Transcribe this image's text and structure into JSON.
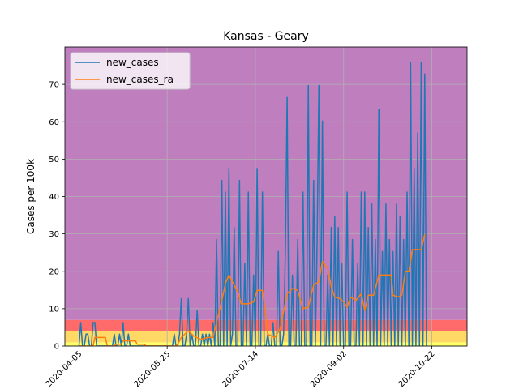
{
  "chart_data": {
    "type": "line",
    "title": "Kansas - Geary",
    "xlabel": "",
    "ylabel": "Cases per 100k",
    "x_range": [
      "2020-03-28",
      "2020-11-11"
    ],
    "ylim": [
      0,
      80
    ],
    "yticks": [
      0,
      10,
      20,
      30,
      40,
      50,
      60,
      70
    ],
    "xticks": [
      "2020-04-05",
      "2020-05-25",
      "2020-07-14",
      "2020-09-02",
      "2020-10-22"
    ],
    "grid": true,
    "legend_position": "upper-left",
    "background_bands": [
      {
        "from": 0,
        "to": 1,
        "color": "#ffff66"
      },
      {
        "from": 1,
        "to": 4,
        "color": "#ffd966"
      },
      {
        "from": 4,
        "to": 7,
        "color": "#ff6b6b"
      },
      {
        "from": 7,
        "to": 80,
        "color": "#bf7fbf"
      }
    ],
    "series": [
      {
        "name": "new_cases",
        "color": "#1f77b4",
        "points": [
          [
            "2020-04-05",
            0
          ],
          [
            "2020-04-06",
            6.3
          ],
          [
            "2020-04-07",
            0
          ],
          [
            "2020-04-08",
            0
          ],
          [
            "2020-04-09",
            3.2
          ],
          [
            "2020-04-10",
            3.2
          ],
          [
            "2020-04-11",
            0
          ],
          [
            "2020-04-12",
            0
          ],
          [
            "2020-04-13",
            6.3
          ],
          [
            "2020-04-14",
            6.3
          ],
          [
            "2020-04-15",
            0
          ],
          [
            "2020-04-16",
            0
          ],
          [
            "2020-04-17",
            0
          ],
          [
            "2020-04-24",
            0
          ],
          [
            "2020-04-25",
            3.2
          ],
          [
            "2020-04-26",
            0
          ],
          [
            "2020-04-27",
            0
          ],
          [
            "2020-04-28",
            3.2
          ],
          [
            "2020-04-29",
            0
          ],
          [
            "2020-04-30",
            6.3
          ],
          [
            "2020-05-01",
            0
          ],
          [
            "2020-05-02",
            0
          ],
          [
            "2020-05-03",
            3.2
          ],
          [
            "2020-05-04",
            0
          ],
          [
            "2020-05-28",
            0
          ],
          [
            "2020-05-29",
            3.2
          ],
          [
            "2020-05-30",
            0
          ],
          [
            "2020-05-31",
            0
          ],
          [
            "2020-06-01",
            3.2
          ],
          [
            "2020-06-02",
            12.7
          ],
          [
            "2020-06-03",
            0
          ],
          [
            "2020-06-04",
            0
          ],
          [
            "2020-06-05",
            3.2
          ],
          [
            "2020-06-06",
            12.7
          ],
          [
            "2020-06-07",
            0
          ],
          [
            "2020-06-08",
            3.2
          ],
          [
            "2020-06-09",
            0
          ],
          [
            "2020-06-10",
            0
          ],
          [
            "2020-06-11",
            9.5
          ],
          [
            "2020-06-12",
            0
          ],
          [
            "2020-06-13",
            0
          ],
          [
            "2020-06-14",
            3.2
          ],
          [
            "2020-06-15",
            0
          ],
          [
            "2020-06-16",
            3.2
          ],
          [
            "2020-06-17",
            0
          ],
          [
            "2020-06-18",
            3.2
          ],
          [
            "2020-06-19",
            0
          ],
          [
            "2020-06-20",
            6.3
          ],
          [
            "2020-06-21",
            0
          ],
          [
            "2020-06-22",
            28.5
          ],
          [
            "2020-06-23",
            0
          ],
          [
            "2020-06-24",
            0
          ],
          [
            "2020-06-25",
            44.3
          ],
          [
            "2020-06-26",
            0
          ],
          [
            "2020-06-27",
            41.2
          ],
          [
            "2020-06-28",
            0
          ],
          [
            "2020-06-29",
            47.5
          ],
          [
            "2020-06-30",
            0
          ],
          [
            "2020-07-01",
            3.2
          ],
          [
            "2020-07-02",
            31.7
          ],
          [
            "2020-07-03",
            0
          ],
          [
            "2020-07-04",
            0
          ],
          [
            "2020-07-05",
            44.3
          ],
          [
            "2020-07-06",
            0
          ],
          [
            "2020-07-07",
            0
          ],
          [
            "2020-07-08",
            22.2
          ],
          [
            "2020-07-09",
            0
          ],
          [
            "2020-07-10",
            41.2
          ],
          [
            "2020-07-11",
            0
          ],
          [
            "2020-07-12",
            0
          ],
          [
            "2020-07-13",
            19.0
          ],
          [
            "2020-07-14",
            0
          ],
          [
            "2020-07-15",
            47.5
          ],
          [
            "2020-07-16",
            0
          ],
          [
            "2020-07-17",
            0
          ],
          [
            "2020-07-18",
            41.2
          ],
          [
            "2020-07-19",
            0
          ],
          [
            "2020-07-20",
            0
          ],
          [
            "2020-07-21",
            3.2
          ],
          [
            "2020-07-22",
            0
          ],
          [
            "2020-07-23",
            0
          ],
          [
            "2020-07-24",
            6.3
          ],
          [
            "2020-07-25",
            0
          ],
          [
            "2020-07-26",
            0
          ],
          [
            "2020-07-27",
            25.3
          ],
          [
            "2020-07-28",
            0
          ],
          [
            "2020-07-29",
            0
          ],
          [
            "2020-07-30",
            3.2
          ],
          [
            "2020-07-31",
            25.3
          ],
          [
            "2020-08-01",
            66.5
          ],
          [
            "2020-08-02",
            0
          ],
          [
            "2020-08-03",
            0
          ],
          [
            "2020-08-04",
            19.0
          ],
          [
            "2020-08-05",
            0
          ],
          [
            "2020-08-06",
            0
          ],
          [
            "2020-08-07",
            28.5
          ],
          [
            "2020-08-08",
            0
          ],
          [
            "2020-08-09",
            0
          ],
          [
            "2020-08-10",
            41.2
          ],
          [
            "2020-08-11",
            0
          ],
          [
            "2020-08-12",
            0
          ],
          [
            "2020-08-13",
            69.7
          ],
          [
            "2020-08-14",
            0
          ],
          [
            "2020-08-15",
            0
          ],
          [
            "2020-08-16",
            44.3
          ],
          [
            "2020-08-17",
            0
          ],
          [
            "2020-08-18",
            28.5
          ],
          [
            "2020-08-19",
            69.7
          ],
          [
            "2020-08-20",
            0
          ],
          [
            "2020-08-21",
            60.2
          ],
          [
            "2020-08-22",
            0
          ],
          [
            "2020-08-23",
            0
          ],
          [
            "2020-08-24",
            19.0
          ],
          [
            "2020-08-25",
            0
          ],
          [
            "2020-08-26",
            31.7
          ],
          [
            "2020-08-27",
            0
          ],
          [
            "2020-08-28",
            34.8
          ],
          [
            "2020-08-29",
            0
          ],
          [
            "2020-08-30",
            31.7
          ],
          [
            "2020-08-31",
            0
          ],
          [
            "2020-09-01",
            22.2
          ],
          [
            "2020-09-02",
            0
          ],
          [
            "2020-09-03",
            0
          ],
          [
            "2020-09-04",
            41.2
          ],
          [
            "2020-09-05",
            0
          ],
          [
            "2020-09-06",
            0
          ],
          [
            "2020-09-07",
            28.5
          ],
          [
            "2020-09-08",
            0
          ],
          [
            "2020-09-09",
            0
          ],
          [
            "2020-09-10",
            22.2
          ],
          [
            "2020-09-11",
            0
          ],
          [
            "2020-09-12",
            41.2
          ],
          [
            "2020-09-13",
            0
          ],
          [
            "2020-09-14",
            41.2
          ],
          [
            "2020-09-15",
            0
          ],
          [
            "2020-09-16",
            31.7
          ],
          [
            "2020-09-17",
            0
          ],
          [
            "2020-09-18",
            38.0
          ],
          [
            "2020-09-19",
            0
          ],
          [
            "2020-09-20",
            28.5
          ],
          [
            "2020-09-21",
            0
          ],
          [
            "2020-09-22",
            63.3
          ],
          [
            "2020-09-23",
            0
          ],
          [
            "2020-09-24",
            25.3
          ],
          [
            "2020-09-25",
            0
          ],
          [
            "2020-09-26",
            38.0
          ],
          [
            "2020-09-27",
            0
          ],
          [
            "2020-09-28",
            28.5
          ],
          [
            "2020-09-29",
            0
          ],
          [
            "2020-09-30",
            25.3
          ],
          [
            "2020-10-01",
            0
          ],
          [
            "2020-10-02",
            38.0
          ],
          [
            "2020-10-03",
            0
          ],
          [
            "2020-10-04",
            34.8
          ],
          [
            "2020-10-05",
            0
          ],
          [
            "2020-10-06",
            28.5
          ],
          [
            "2020-10-07",
            0
          ],
          [
            "2020-10-08",
            41.2
          ],
          [
            "2020-10-09",
            0
          ],
          [
            "2020-10-10",
            75.9
          ],
          [
            "2020-10-11",
            0
          ],
          [
            "2020-10-12",
            47.5
          ],
          [
            "2020-10-13",
            0
          ],
          [
            "2020-10-14",
            57.0
          ],
          [
            "2020-10-15",
            0
          ],
          [
            "2020-10-16",
            75.9
          ],
          [
            "2020-10-17",
            0
          ],
          [
            "2020-10-18",
            72.8
          ],
          [
            "2020-10-19",
            0
          ]
        ]
      },
      {
        "name": "new_cases_ra",
        "color": "#ff7f0e",
        "points": [
          [
            "2020-04-05",
            0
          ],
          [
            "2020-04-13",
            0
          ],
          [
            "2020-04-14",
            2.3
          ],
          [
            "2020-04-20",
            2.3
          ],
          [
            "2020-04-21",
            0
          ],
          [
            "2020-04-25",
            0
          ],
          [
            "2020-04-26",
            0.5
          ],
          [
            "2020-04-29",
            0.5
          ],
          [
            "2020-04-30",
            1.4
          ],
          [
            "2020-05-07",
            1.4
          ],
          [
            "2020-05-08",
            0.5
          ],
          [
            "2020-05-12",
            0.5
          ],
          [
            "2020-05-13",
            0
          ],
          [
            "2020-05-30",
            0
          ],
          [
            "2020-05-31",
            0.5
          ],
          [
            "2020-06-02",
            2.3
          ],
          [
            "2020-06-06",
            4.1
          ],
          [
            "2020-06-09",
            2.7
          ],
          [
            "2020-06-13",
            1.8
          ],
          [
            "2020-06-17",
            2.3
          ],
          [
            "2020-06-20",
            2.3
          ],
          [
            "2020-06-22",
            6.3
          ],
          [
            "2020-06-25",
            12.2
          ],
          [
            "2020-06-27",
            16.7
          ],
          [
            "2020-06-29",
            19.0
          ],
          [
            "2020-07-02",
            16.3
          ],
          [
            "2020-07-04",
            14.5
          ],
          [
            "2020-07-06",
            11.3
          ],
          [
            "2020-07-10",
            11.3
          ],
          [
            "2020-07-13",
            11.8
          ],
          [
            "2020-07-15",
            14.9
          ],
          [
            "2020-07-18",
            14.9
          ],
          [
            "2020-07-19",
            11.8
          ],
          [
            "2020-07-21",
            3.2
          ],
          [
            "2020-07-25",
            2.3
          ],
          [
            "2020-07-28",
            4.5
          ],
          [
            "2020-08-01",
            14.0
          ],
          [
            "2020-08-04",
            15.4
          ],
          [
            "2020-08-07",
            14.9
          ],
          [
            "2020-08-10",
            10.0
          ],
          [
            "2020-08-13",
            10.4
          ],
          [
            "2020-08-16",
            16.3
          ],
          [
            "2020-08-19",
            17.2
          ],
          [
            "2020-08-21",
            22.6
          ],
          [
            "2020-08-24",
            20.8
          ],
          [
            "2020-08-26",
            15.8
          ],
          [
            "2020-08-28",
            13.1
          ],
          [
            "2020-08-31",
            12.7
          ],
          [
            "2020-09-02",
            11.8
          ],
          [
            "2020-09-04",
            10.4
          ],
          [
            "2020-09-06",
            13.1
          ],
          [
            "2020-09-09",
            12.2
          ],
          [
            "2020-09-12",
            14.0
          ],
          [
            "2020-09-14",
            9.5
          ],
          [
            "2020-09-16",
            13.6
          ],
          [
            "2020-09-19",
            13.6
          ],
          [
            "2020-09-22",
            19.0
          ],
          [
            "2020-09-26",
            19.0
          ],
          [
            "2020-09-29",
            19.0
          ],
          [
            "2020-09-30",
            13.6
          ],
          [
            "2020-10-03",
            13.1
          ],
          [
            "2020-10-05",
            13.6
          ],
          [
            "2020-10-07",
            19.9
          ],
          [
            "2020-10-09",
            19.9
          ],
          [
            "2020-10-11",
            25.8
          ],
          [
            "2020-10-13",
            25.8
          ],
          [
            "2020-10-16",
            25.8
          ],
          [
            "2020-10-18",
            29.9
          ]
        ]
      }
    ]
  }
}
